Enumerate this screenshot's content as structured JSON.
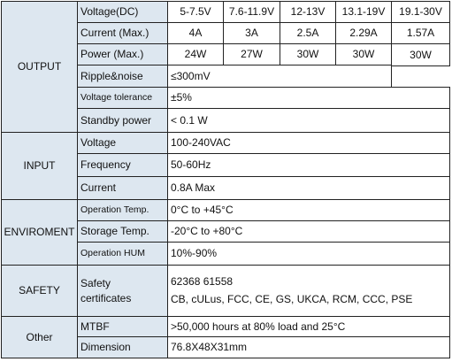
{
  "sections": {
    "output": "OUTPUT",
    "input": "INPUT",
    "environment": "ENVIROMENT",
    "safety": "SAFETY",
    "other": "Other"
  },
  "output": {
    "voltage_label": "Voltage(DC)",
    "voltages": [
      "5-7.5V",
      "7.6-11.9V",
      "12-13V",
      "13.1-19V",
      "19.1-30V"
    ],
    "current_label": "Current (Max.)",
    "currents": [
      "4A",
      "3A",
      "2.5A",
      "2.29A",
      "1.57A"
    ],
    "power_label": "Power (Max.)",
    "powers": [
      "24W",
      "27W",
      "30W",
      "30W",
      "30W"
    ],
    "ripple_label": "Ripple&noise",
    "ripple_value": "≤300mV",
    "tolerance_label": "Voltage tolerance",
    "tolerance_value": "±5%",
    "standby_label": "Standby power",
    "standby_value": "< 0.1 W"
  },
  "input": {
    "voltage_label": "Voltage",
    "voltage_value": "100-240VAC",
    "frequency_label": "Frequency",
    "frequency_value": "50-60Hz",
    "current_label": "Current",
    "current_value": "0.8A Max"
  },
  "environment": {
    "op_temp_label": "Operation Temp.",
    "op_temp_value": "0°C to +45°C",
    "storage_label": "Storage Temp.",
    "storage_value": "-20°C to +80°C",
    "hum_label": "Operation HUM",
    "hum_value": "10%-90%"
  },
  "safety": {
    "cert_label_line1": "Safety",
    "cert_label_line2": "certificates",
    "cert_line1": "62368 61558",
    "cert_line2": "CB, cULus, FCC, CE, GS, UKCA, RCM, CCC, PSE"
  },
  "other": {
    "mtbf_label": "MTBF",
    "mtbf_value": ">50,000 hours at 80% load and 25°C",
    "dimension_label": "Dimension",
    "dimension_value": "76.8X48X31mm"
  }
}
